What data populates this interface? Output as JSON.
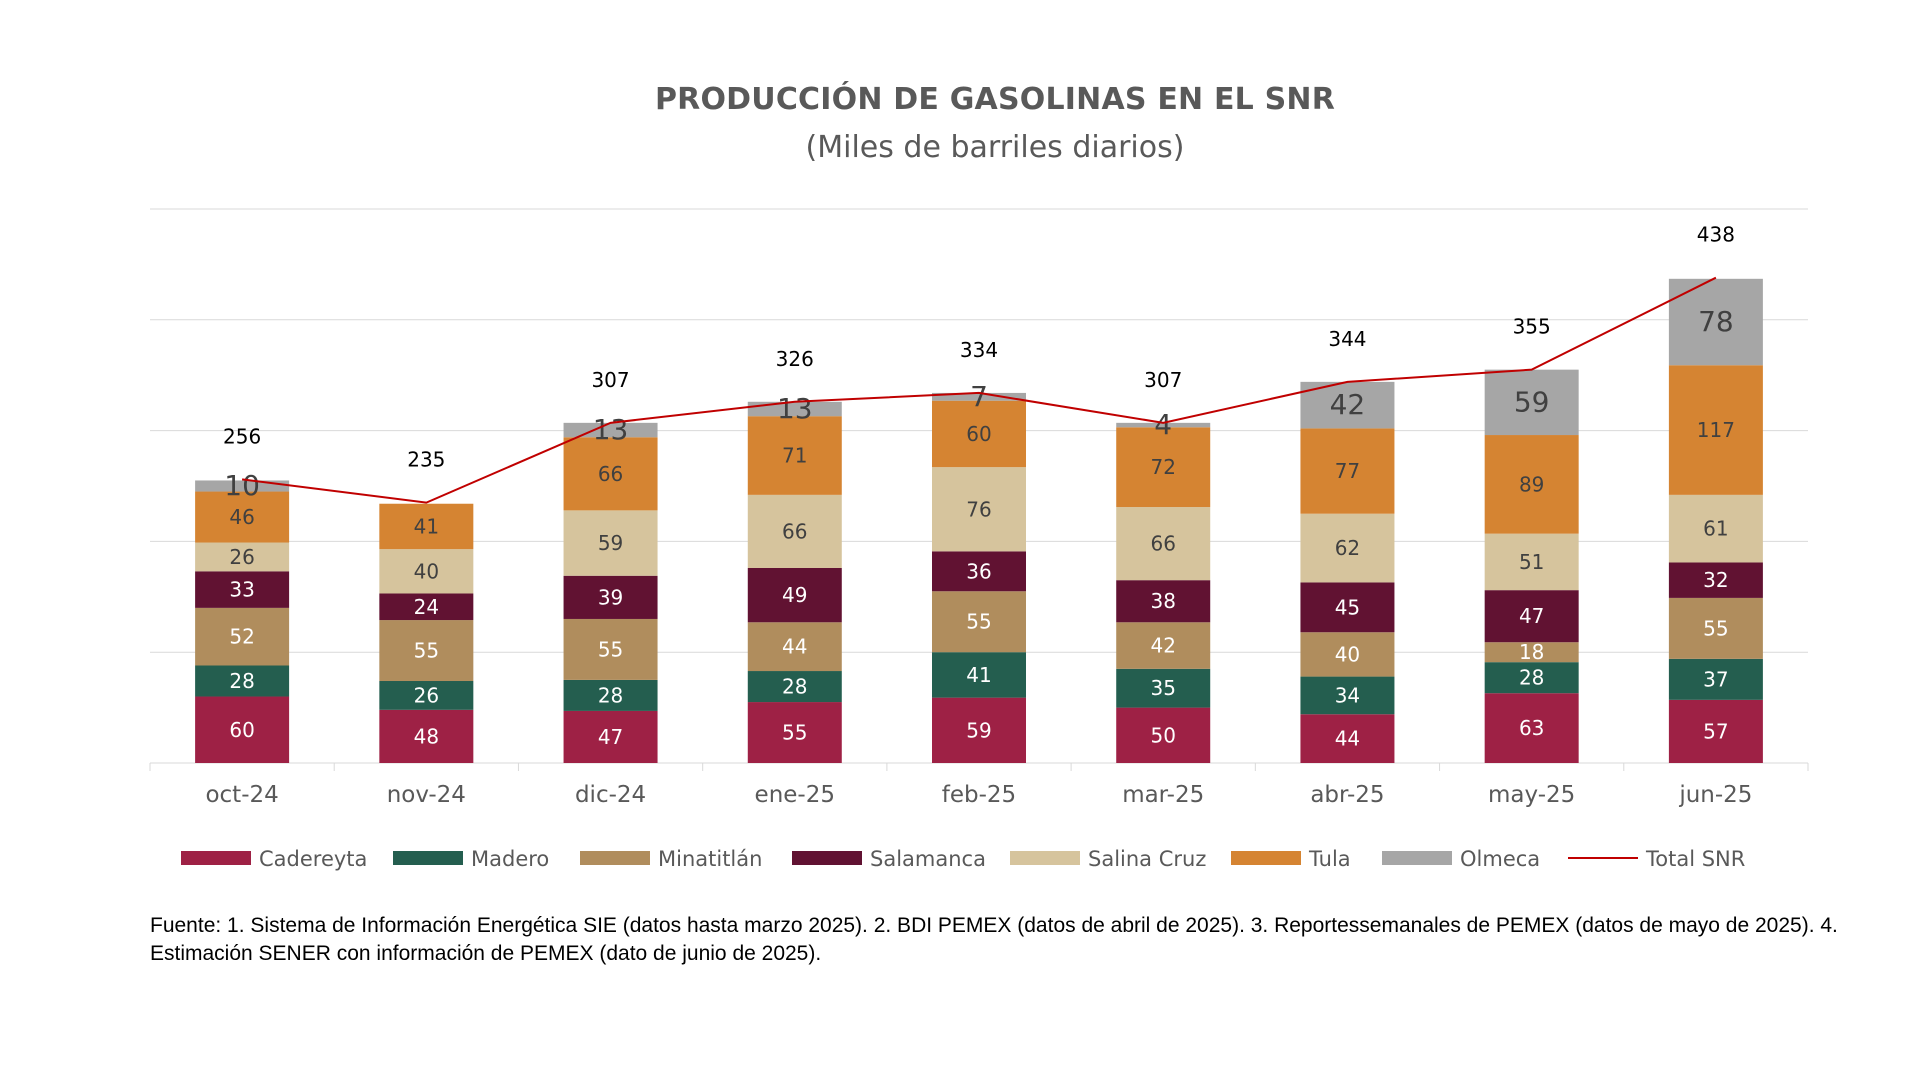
{
  "title": "PRODUCCIÓN DE GASOLINAS EN EL SNR",
  "subtitle": "(Miles de barriles diarios)",
  "footnote": "Fuente: 1. Sistema de Información Energética SIE (datos hasta marzo 2025). 2. BDI PEMEX (datos de abril de 2025). 3. Reportessemanales de PEMEX (datos de mayo de 2025). 4. Estimación SENER con información de PEMEX (dato de junio de 2025).",
  "chart_data": {
    "type": "bar",
    "stacked": true,
    "title": "PRODUCCIÓN DE GASOLINAS EN EL SNR",
    "subtitle": "(Miles de barriles diarios)",
    "categories": [
      "oct-24",
      "nov-24",
      "dic-24",
      "ene-25",
      "feb-25",
      "mar-25",
      "abr-25",
      "may-25",
      "jun-25"
    ],
    "ylim": [
      0,
      500
    ],
    "grid": true,
    "legend": "bottom",
    "series": [
      {
        "name": "Cadereyta",
        "color": "#9E2145",
        "label_color": "#ffffff",
        "values": [
          60,
          48,
          47,
          55,
          59,
          50,
          44,
          63,
          57
        ]
      },
      {
        "name": "Madero",
        "color": "#245E4F",
        "label_color": "#ffffff",
        "values": [
          28,
          26,
          28,
          28,
          41,
          35,
          34,
          28,
          37
        ]
      },
      {
        "name": "Minatitlán",
        "color": "#B08D5D",
        "label_color": "#ffffff",
        "values": [
          52,
          55,
          55,
          44,
          55,
          42,
          40,
          18,
          55
        ]
      },
      {
        "name": "Salamanca",
        "color": "#611232",
        "label_color": "#ffffff",
        "values": [
          33,
          24,
          39,
          49,
          36,
          38,
          45,
          47,
          32
        ]
      },
      {
        "name": "Salina Cruz",
        "color": "#D6C49D",
        "label_color": "#404040",
        "values": [
          26,
          40,
          59,
          66,
          76,
          66,
          62,
          51,
          61
        ]
      },
      {
        "name": "Tula",
        "color": "#D58432",
        "label_color": "#404040",
        "values": [
          46,
          41,
          66,
          71,
          60,
          72,
          77,
          89,
          117
        ]
      },
      {
        "name": "Olmeca",
        "color": "#A6A6A6",
        "label_color": "#404040",
        "values": [
          10,
          null,
          13,
          13,
          7,
          4,
          42,
          59,
          78
        ]
      }
    ],
    "line": {
      "name": "Total SNR",
      "color": "#C00000",
      "values": [
        256,
        235,
        307,
        326,
        334,
        307,
        344,
        355,
        438
      ]
    }
  }
}
